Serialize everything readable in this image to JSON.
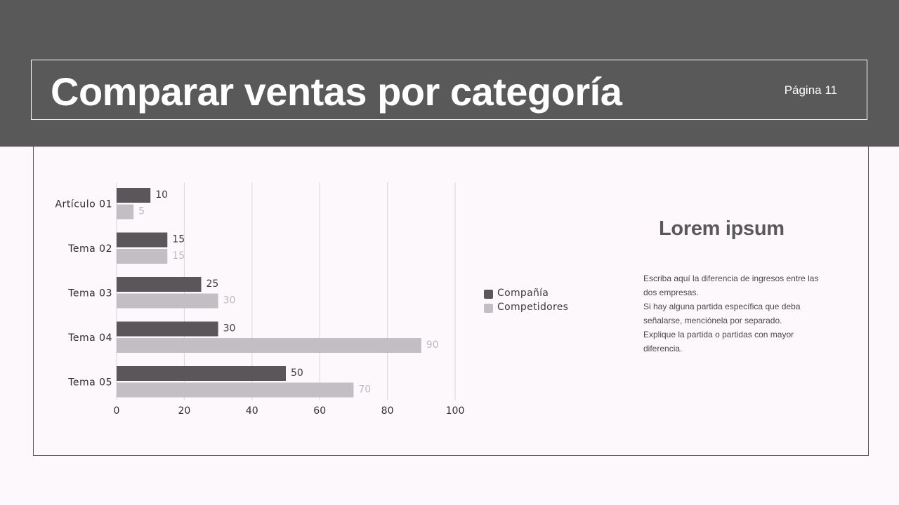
{
  "header": {
    "title": "Comparar ventas por categoría",
    "page_label": "Página 11"
  },
  "colors": {
    "header_bg": "#5a595a",
    "series_company": "#5a575b",
    "series_competitors": "#c3bec3",
    "background": "#fcf8fc"
  },
  "legend": {
    "items": [
      {
        "label": "Compañía",
        "color": "#5a575b"
      },
      {
        "label": "Competidores",
        "color": "#c3bec3"
      }
    ]
  },
  "side_panel": {
    "heading": "Lorem ipsum",
    "paragraphs": [
      "Escriba aquí la diferencia de ingresos entre las dos empresas.",
      "Si hay alguna partida específica que deba señalarse, menciónela por separado.",
      "Explique la partida o partidas con mayor diferencia."
    ]
  },
  "chart_data": {
    "type": "bar",
    "orientation": "horizontal",
    "categories": [
      "Artículo 01",
      "Tema 02",
      "Tema 03",
      "Tema 04",
      "Tema 05"
    ],
    "series": [
      {
        "name": "Compañía",
        "values": [
          10,
          15,
          25,
          30,
          50
        ],
        "color": "#5a575b"
      },
      {
        "name": "Competidores",
        "values": [
          5,
          15,
          30,
          90,
          70
        ],
        "color": "#c3bec3"
      }
    ],
    "xlim": [
      0,
      100
    ],
    "xticks": [
      "0",
      "20",
      "40",
      "60",
      "80",
      "100"
    ],
    "grid": true,
    "legend_position": "right"
  }
}
